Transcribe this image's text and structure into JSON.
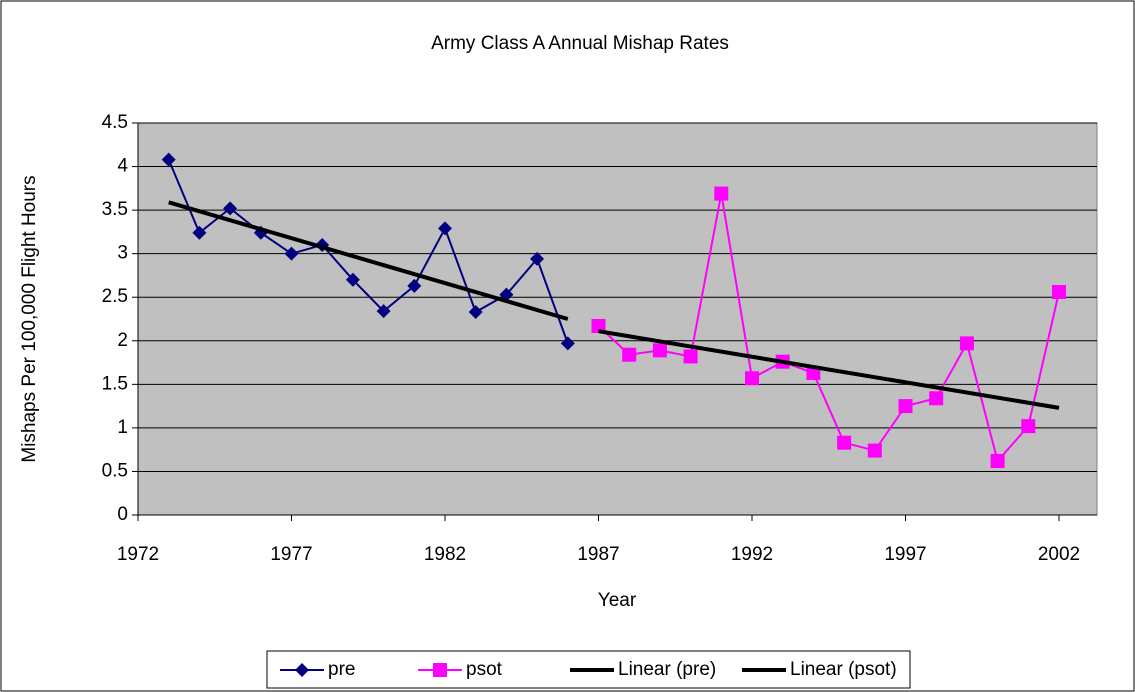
{
  "chart_data": {
    "type": "line",
    "title": "Army Class A Annual Mishap Rates",
    "xlabel": "Year",
    "ylabel": "Mishaps Per 100,000 Flight Hours",
    "xlim": [
      1972,
      2002
    ],
    "xticks": [
      1972,
      1977,
      1982,
      1987,
      1992,
      1997,
      2002
    ],
    "ylim": [
      0,
      4.5
    ],
    "yticks": [
      0,
      0.5,
      1,
      1.5,
      2,
      2.5,
      3,
      3.5,
      4,
      4.5
    ],
    "grid": true,
    "legend": "bottom",
    "series": [
      {
        "name": "pre",
        "color": "#000080",
        "marker": "diamond",
        "x": [
          1973,
          1974,
          1975,
          1976,
          1977,
          1978,
          1979,
          1980,
          1981,
          1982,
          1983,
          1984,
          1985,
          1986
        ],
        "values": [
          4.08,
          3.24,
          3.52,
          3.24,
          3.0,
          3.1,
          2.7,
          2.34,
          2.63,
          3.29,
          2.33,
          2.53,
          2.94,
          1.97
        ]
      },
      {
        "name": "psot",
        "color": "#ff00ff",
        "marker": "square",
        "x": [
          1987,
          1988,
          1989,
          1990,
          1991,
          1992,
          1993,
          1994,
          1995,
          1996,
          1997,
          1998,
          1999,
          2000,
          2001,
          2002
        ],
        "values": [
          2.17,
          1.84,
          1.89,
          1.82,
          3.69,
          1.57,
          1.76,
          1.63,
          0.83,
          0.74,
          1.25,
          1.34,
          1.97,
          0.62,
          1.02,
          2.56
        ]
      },
      {
        "name": "Linear (pre)",
        "color": "#000000",
        "marker": "none",
        "x": [
          1973,
          1986
        ],
        "values": [
          3.59,
          2.25
        ]
      },
      {
        "name": "Linear (psot)",
        "color": "#000000",
        "marker": "none",
        "x": [
          1987,
          2002
        ],
        "values": [
          2.11,
          1.23
        ]
      }
    ]
  }
}
